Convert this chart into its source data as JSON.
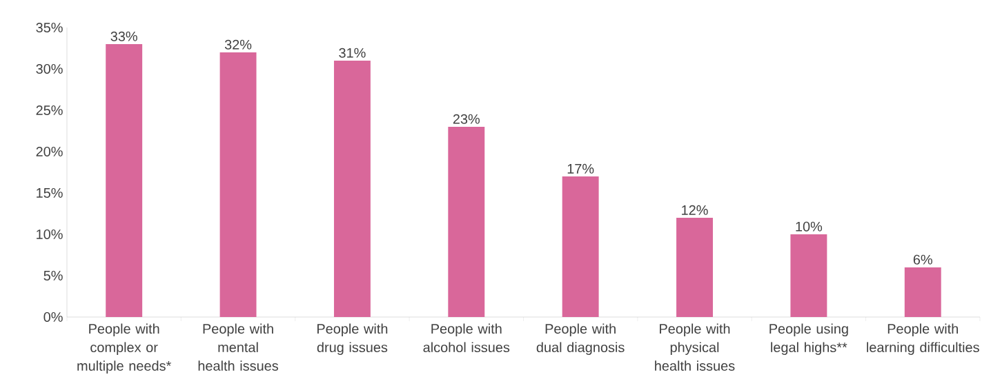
{
  "chart_data": {
    "type": "bar",
    "categories": [
      "People with complex or multiple needs*",
      "People with mental health issues",
      "People with drug issues",
      "People with alcohol issues",
      "People with dual diagnosis",
      "People with physical health issues",
      "People using legal highs**",
      "People with learning difficulties"
    ],
    "values": [
      33,
      32,
      31,
      23,
      17,
      12,
      10,
      6
    ],
    "value_labels": [
      "33%",
      "32%",
      "31%",
      "23%",
      "17%",
      "12%",
      "10%",
      "6%"
    ],
    "color": "#d9679a",
    "yticks": [
      {
        "value": 0,
        "label": "0%"
      },
      {
        "value": 5,
        "label": "5%"
      },
      {
        "value": 10,
        "label": "10%"
      },
      {
        "value": 15,
        "label": "15%"
      },
      {
        "value": 20,
        "label": "20%"
      },
      {
        "value": 25,
        "label": "25%"
      },
      {
        "value": 30,
        "label": "30%"
      },
      {
        "value": 35,
        "label": "35%"
      }
    ],
    "ylim": [
      0,
      35
    ]
  }
}
